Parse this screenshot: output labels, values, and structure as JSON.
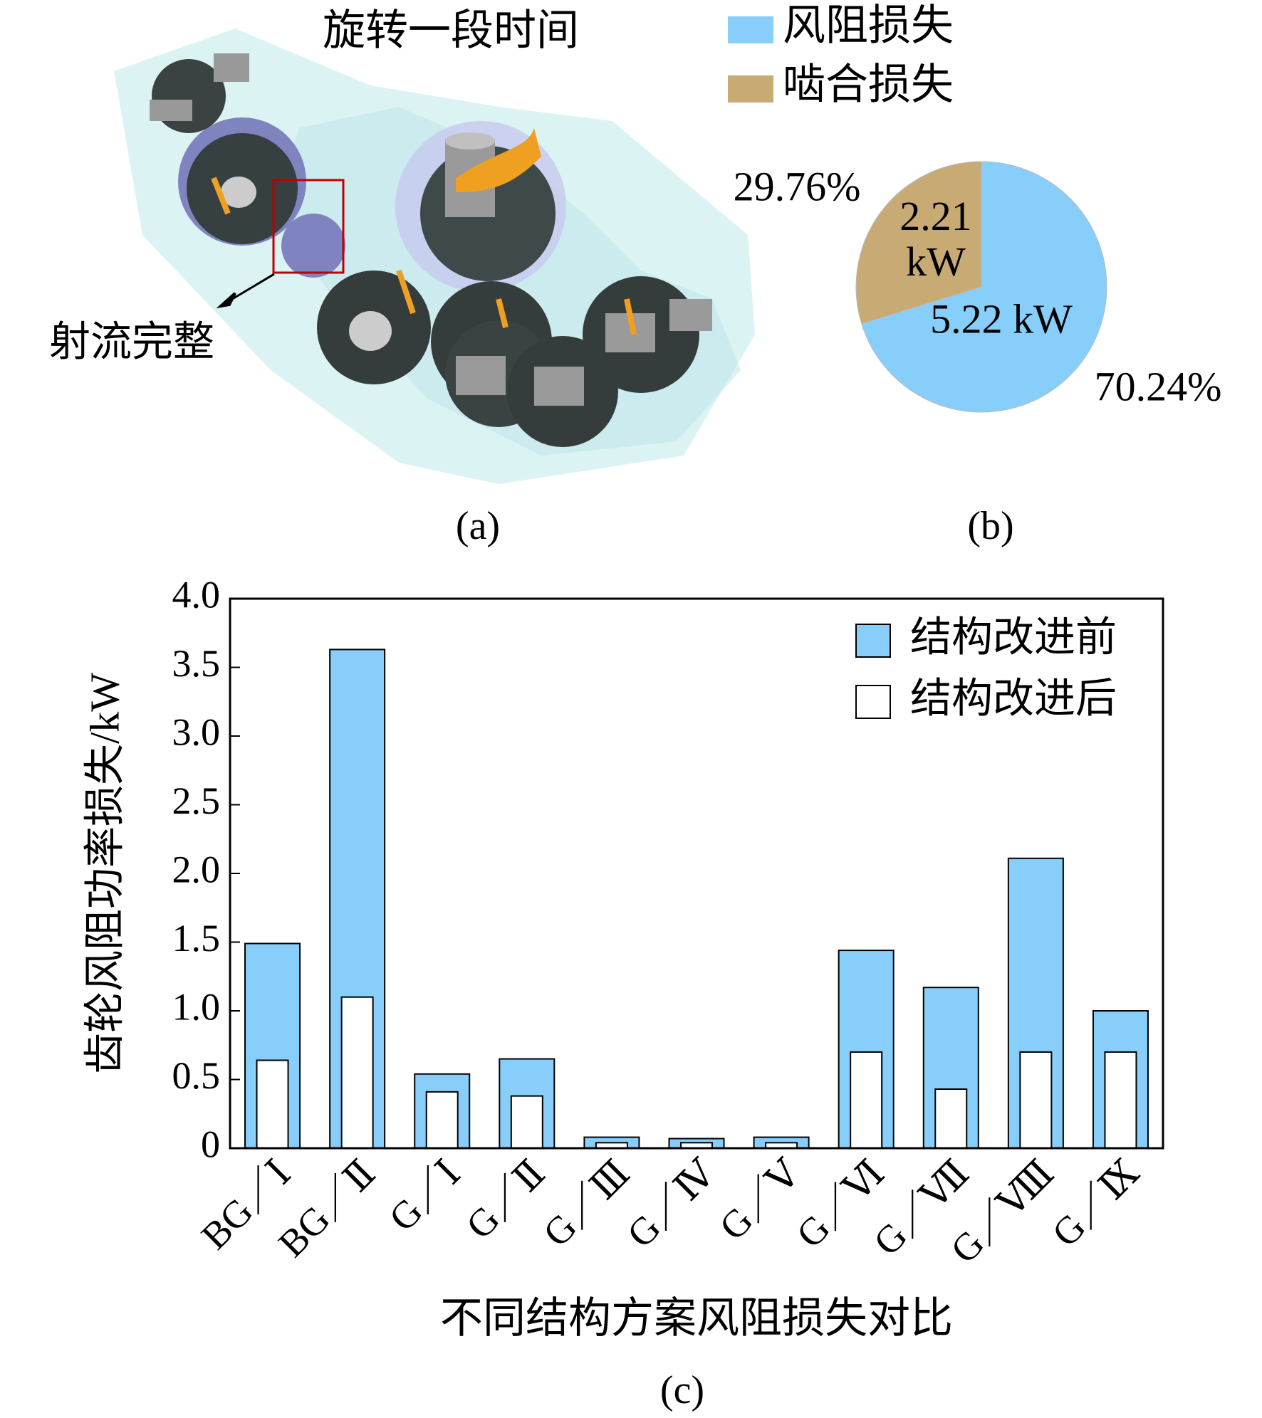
{
  "figure_a": {
    "title": "旋转一段时间",
    "annotation": "射流完整",
    "label": "(a)"
  },
  "chart_data": [
    {
      "type": "pie",
      "label": "(b)",
      "categories": [
        "风阻损失",
        "啮合损失"
      ],
      "colors": [
        "#87cefa",
        "#c8ab74"
      ],
      "values": [
        5.22,
        2.21
      ],
      "value_labels": [
        "5.22 kW",
        "2.21 kW"
      ],
      "percentages": [
        70.24,
        29.76
      ],
      "percentage_labels": [
        "70.24%",
        "29.76%"
      ]
    },
    {
      "type": "bar",
      "label": "(c)",
      "x_label": "不同结构方案风阻损失对比",
      "y_label": "齿轮风阻功率损失/kW",
      "categories": [
        "BG／Ⅰ",
        "BG／Ⅱ",
        "G／Ⅰ",
        "G／Ⅱ",
        "G／Ⅲ",
        "G／Ⅳ",
        "G／Ⅴ",
        "G／Ⅵ",
        "G／Ⅶ",
        "G／Ⅷ",
        "G／Ⅸ"
      ],
      "series": [
        {
          "name": "结构改进前",
          "color": "#87cefa",
          "values": [
            1.49,
            3.63,
            0.54,
            0.65,
            0.08,
            0.07,
            0.08,
            1.44,
            1.17,
            2.11,
            1.0
          ]
        },
        {
          "name": "结构改进后",
          "color": "#ffffff",
          "values": [
            0.64,
            1.1,
            0.41,
            0.38,
            0.04,
            0.04,
            0.04,
            0.7,
            0.43,
            0.7,
            0.7
          ]
        }
      ],
      "ylim": [
        0,
        4
      ],
      "yticks": [
        0,
        0.5,
        {
          "value": 1,
          "label": "1.0"
        },
        1.5,
        {
          "value": 2,
          "label": "2.0"
        },
        2.5,
        {
          "value": 3,
          "label": "3.0"
        },
        3.5,
        {
          "value": 4,
          "label": "4.0"
        }
      ],
      "legend": "top-right"
    }
  ]
}
